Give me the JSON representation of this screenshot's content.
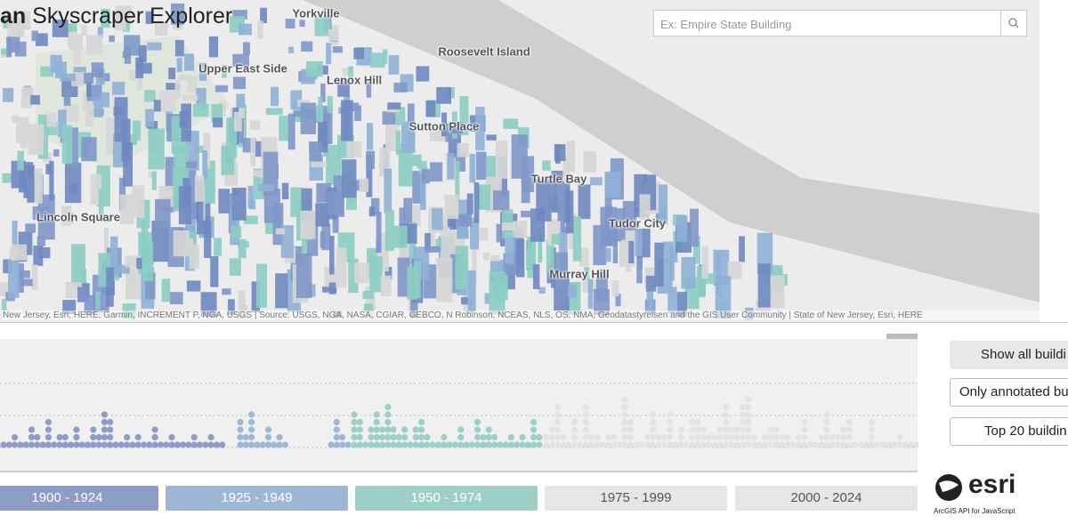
{
  "header": {
    "title_bold": "an",
    "title": "Skyscraper Explorer"
  },
  "search": {
    "placeholder": "Ex: Empire State Building"
  },
  "map": {
    "labels": [
      "Yorkville",
      "Roosevelt Island",
      "Upper East Side",
      "Lenox Hill",
      "Sutton Place",
      "Turtle Bay",
      "Tudor City",
      "Lincoln Square",
      "Murray Hill"
    ],
    "attribution": "New Jersey, Esri, HERE, Garmin, INCREMENT P, NGA, USGS | Source: USGS, NGA, NASA, CGIAR, GEBCO, N Robinson, NCEAS, NLS, OS, NMA, Geodatastyrelsen and the GIS User Community | State of New Jersey, Esri, HERE"
  },
  "timeline": {
    "periods": [
      "1900 - 1924",
      "1925 - 1949",
      "1950 - 1974",
      "1975 - 1999",
      "2000 - 2024"
    ]
  },
  "filters": [
    "Show all buildi",
    "Only annotated bu",
    "Top 20 buildin"
  ],
  "branding": {
    "logo": "esri",
    "caption": "ArcGIS API for JavaScript"
  }
}
